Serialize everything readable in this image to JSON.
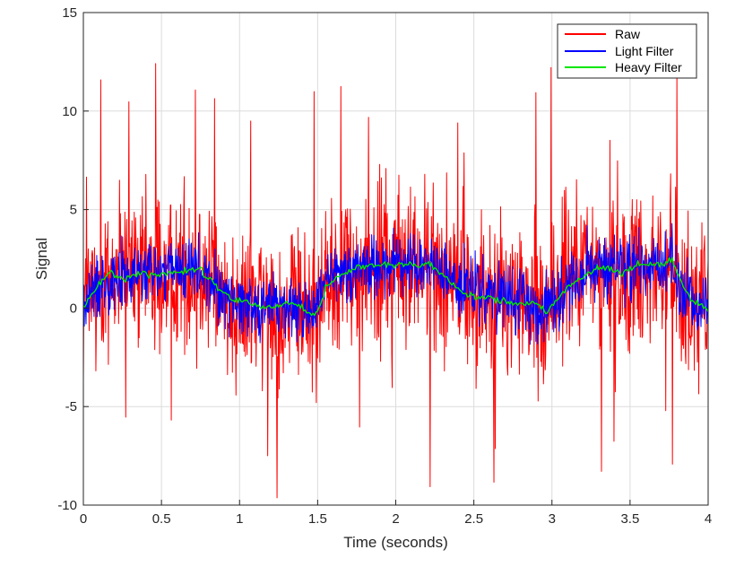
{
  "chart_data": {
    "type": "line",
    "title": "",
    "xlabel": "Time (seconds)",
    "ylabel": "Signal",
    "xlim": [
      0,
      4
    ],
    "ylim": [
      -10,
      15
    ],
    "grid": true,
    "legend_position": "top-right",
    "x_ticks": [
      0,
      0.5,
      1,
      1.5,
      2,
      2.5,
      3,
      3.5,
      4
    ],
    "x_tick_labels": [
      "0",
      "0.5",
      "1",
      "1.5",
      "2",
      "2.5",
      "3",
      "3.5",
      "4"
    ],
    "y_ticks": [
      -10,
      -5,
      0,
      5,
      10,
      15
    ],
    "y_tick_labels": [
      "-10",
      "-5",
      "0",
      "5",
      "10",
      "15"
    ],
    "series": [
      {
        "name": "Raw",
        "color": "#ff0000",
        "style": "noisy",
        "noise_amplitude": 3.5,
        "spike_min": -9.7,
        "spike_max": 12.5,
        "x": [
          0,
          0.1,
          0.2,
          0.3,
          0.4,
          0.5,
          0.6,
          0.7,
          0.8,
          0.9,
          1.0,
          1.1,
          1.2,
          1.3,
          1.4,
          1.5,
          1.55,
          1.7,
          1.9,
          2.1,
          2.25,
          2.4,
          2.6,
          2.8,
          2.95,
          3.1,
          3.25,
          3.4,
          3.55,
          3.75,
          3.85,
          4.0
        ],
        "y": [
          0,
          1.2,
          1.7,
          1.5,
          1.8,
          1.8,
          1.9,
          2.0,
          1.4,
          0.6,
          0.3,
          0.1,
          0.2,
          0.0,
          -0.1,
          -0.1,
          1.2,
          2.0,
          2.2,
          2.2,
          2.1,
          1.2,
          0.6,
          0.3,
          0.0,
          1.2,
          2.0,
          1.9,
          2.2,
          2.3,
          0.6,
          0.0
        ]
      },
      {
        "name": "Light Filter",
        "color": "#0000ff",
        "style": "noisy",
        "noise_amplitude": 1.4,
        "x": [
          0,
          0.1,
          0.2,
          0.3,
          0.4,
          0.5,
          0.6,
          0.7,
          0.8,
          0.9,
          1.0,
          1.1,
          1.2,
          1.3,
          1.4,
          1.5,
          1.55,
          1.7,
          1.9,
          2.1,
          2.25,
          2.4,
          2.6,
          2.8,
          2.95,
          3.1,
          3.25,
          3.4,
          3.55,
          3.75,
          3.85,
          4.0
        ],
        "y": [
          0,
          1.2,
          1.7,
          1.5,
          1.8,
          1.8,
          1.9,
          2.0,
          1.4,
          0.6,
          0.3,
          0.1,
          0.2,
          0.0,
          -0.1,
          -0.1,
          1.2,
          2.0,
          2.2,
          2.2,
          2.1,
          1.2,
          0.6,
          0.3,
          0.0,
          1.2,
          2.0,
          1.9,
          2.2,
          2.3,
          0.6,
          0.0
        ]
      },
      {
        "name": "Heavy Filter",
        "color": "#00e600",
        "style": "smooth",
        "noise_amplitude": 0.15,
        "x": [
          0,
          0.1,
          0.17,
          0.25,
          0.35,
          0.45,
          0.55,
          0.65,
          0.75,
          0.85,
          0.95,
          1.05,
          1.15,
          1.25,
          1.3,
          1.4,
          1.45,
          1.5,
          1.55,
          1.65,
          1.75,
          1.9,
          2.05,
          2.2,
          2.25,
          2.35,
          2.45,
          2.6,
          2.8,
          2.9,
          2.95,
          2.97,
          3.1,
          3.2,
          3.3,
          3.45,
          3.55,
          3.7,
          3.77,
          3.85,
          3.92,
          4.0
        ],
        "y": [
          0,
          1.3,
          1.8,
          1.4,
          1.8,
          1.7,
          1.8,
          1.9,
          2.0,
          1.1,
          0.5,
          0.3,
          0.0,
          0.1,
          0.3,
          0.0,
          -0.3,
          -0.2,
          1.0,
          1.7,
          2.1,
          2.2,
          2.2,
          2.2,
          2.1,
          1.3,
          0.7,
          0.5,
          0.2,
          0.3,
          -0.1,
          -0.2,
          1.0,
          1.5,
          2.1,
          1.8,
          2.2,
          2.2,
          2.4,
          1.0,
          0.2,
          0.0
        ]
      }
    ]
  }
}
